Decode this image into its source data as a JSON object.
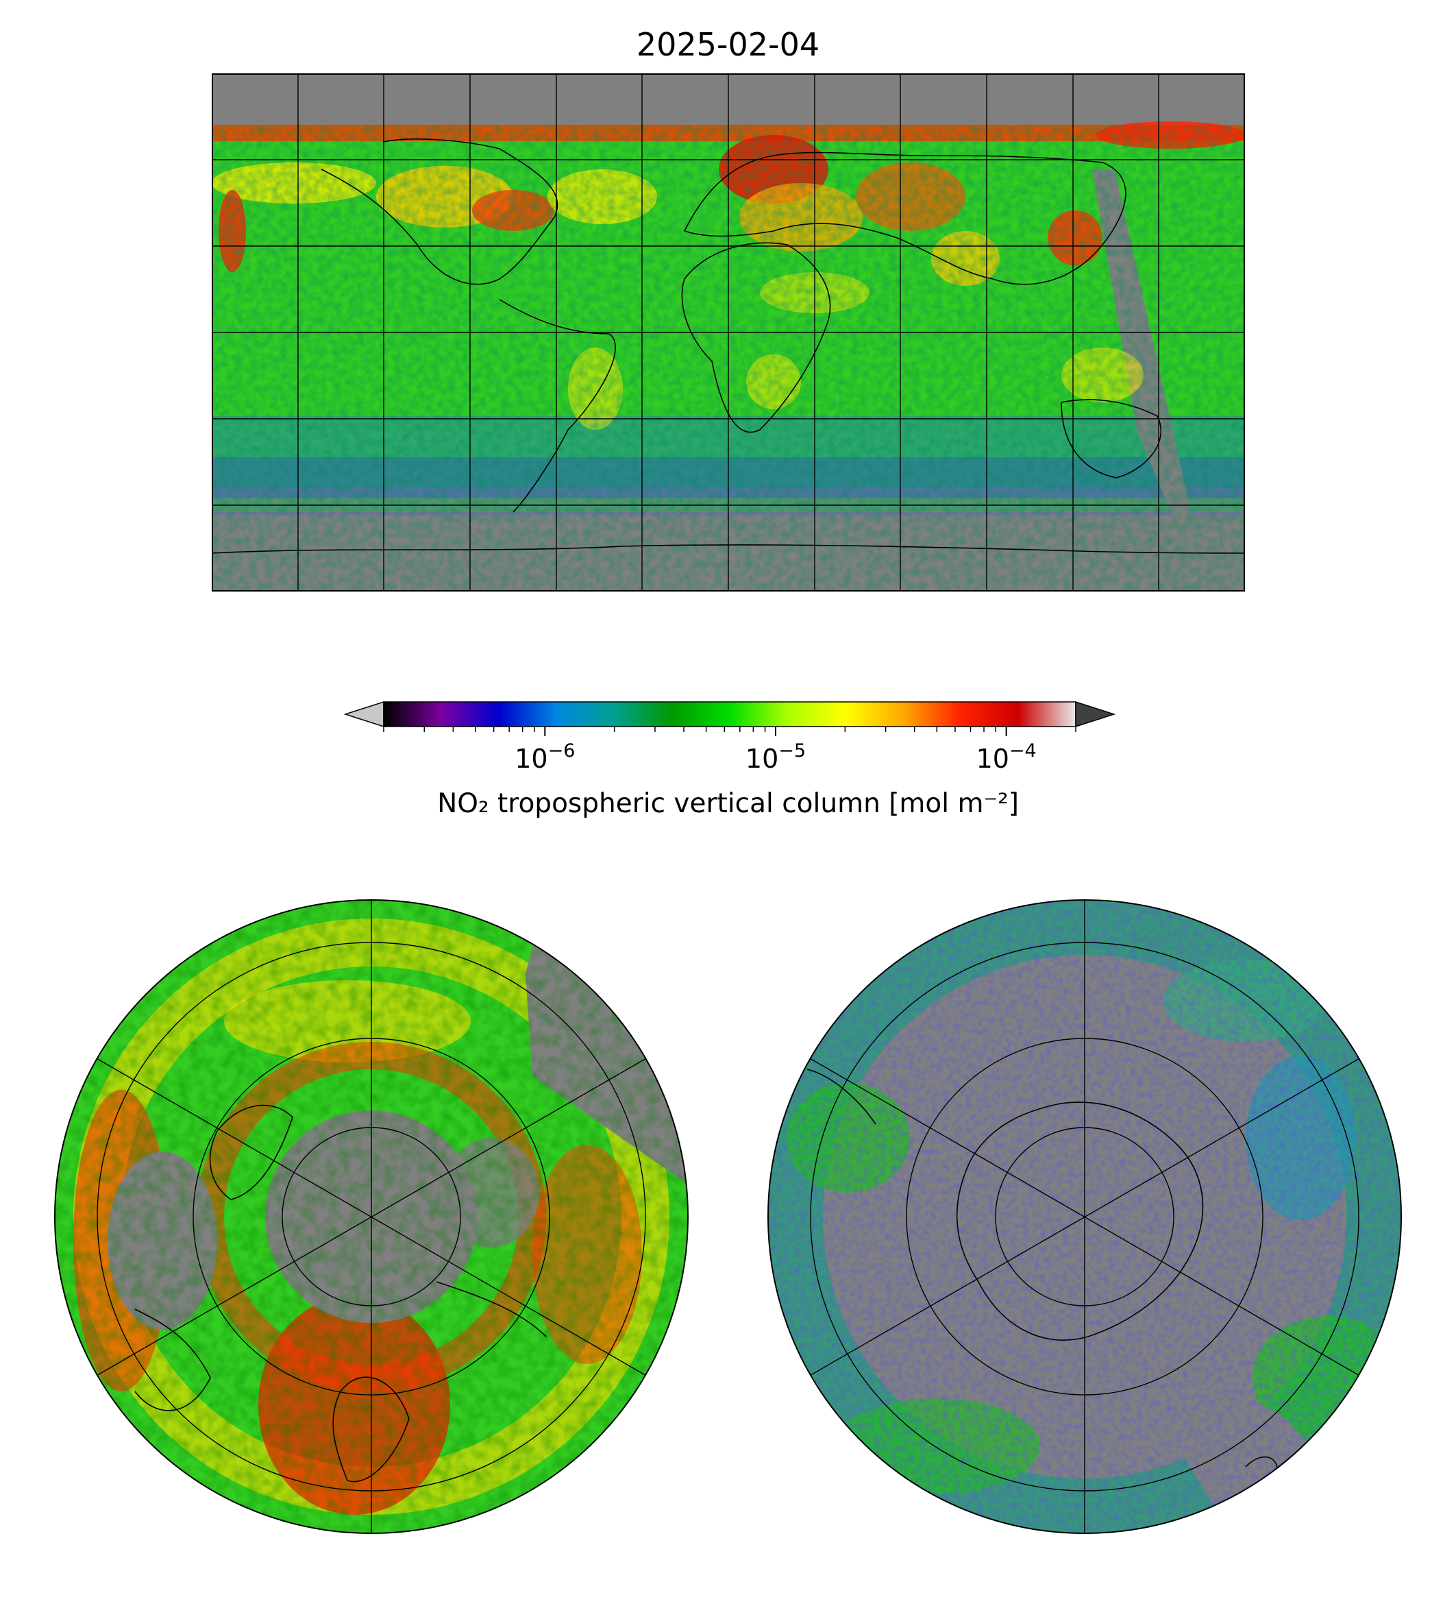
{
  "title": "2025-02-04",
  "colorbar": {
    "label": "NO₂ tropospheric vertical column [mol m⁻²]",
    "scale": "log",
    "range": [
      2e-07,
      0.0002
    ],
    "extend": "both",
    "under_color": "#c8c8c8",
    "over_color": "#404040",
    "colormap": [
      "#000000",
      "#7a00a0",
      "#0000d0",
      "#0088e0",
      "#00a090",
      "#009900",
      "#00dd00",
      "#aaff00",
      "#ffff00",
      "#ffaa00",
      "#ff2200",
      "#cc0000",
      "#e8e8e8"
    ],
    "ticks": [
      {
        "base": "10",
        "exp": "−6",
        "value": 1e-06
      },
      {
        "base": "10",
        "exp": "−5",
        "value": 1e-05
      },
      {
        "base": "10",
        "exp": "−4",
        "value": 0.0001
      }
    ]
  },
  "panels": {
    "world": {
      "projection": "plate-carree",
      "extent": [
        -180,
        180,
        -90,
        90
      ],
      "gridlines": true,
      "no_data_color": "#808080"
    },
    "north": {
      "projection": "north-polar-stereographic",
      "gridlines": true
    },
    "south": {
      "projection": "south-polar-stereographic",
      "gridlines": true
    }
  }
}
